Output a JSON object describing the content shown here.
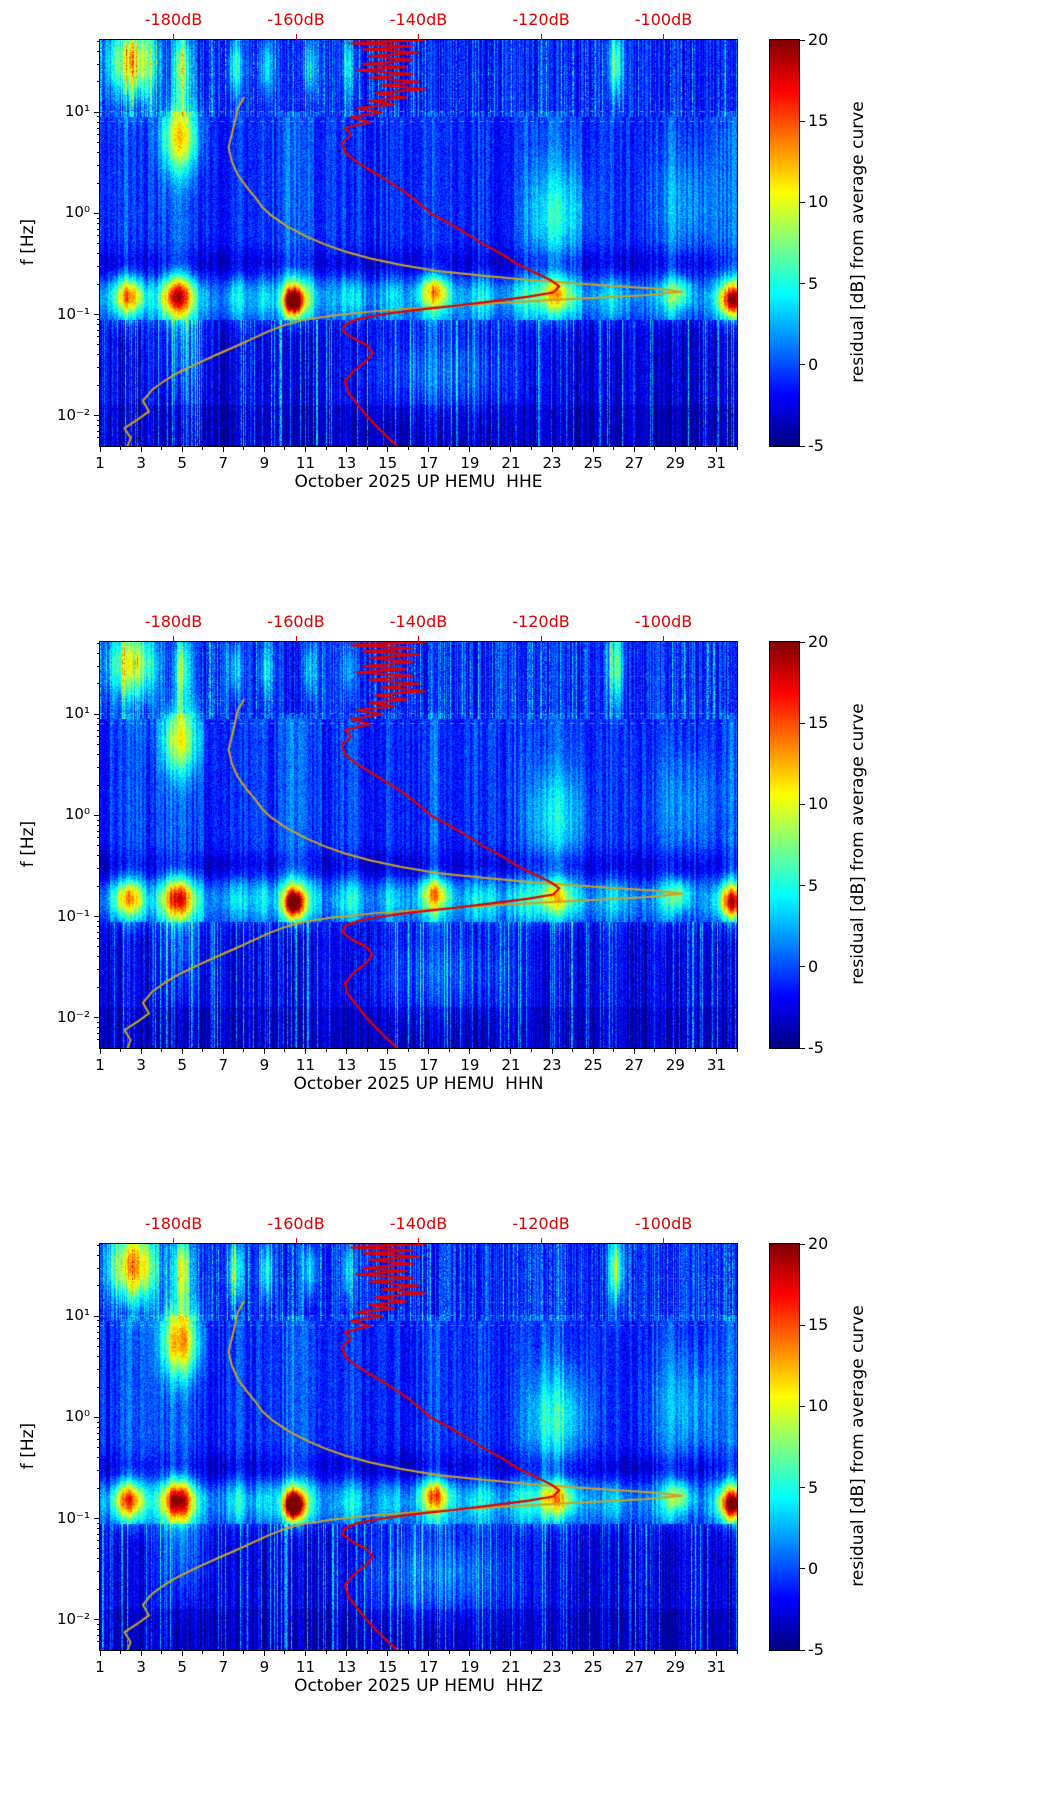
{
  "figure": {
    "background": "#ffffff"
  },
  "chart_data": {
    "type": "heatmap",
    "colormap": "jet",
    "f_label": "f [Hz]",
    "x_range": [
      1,
      32
    ],
    "f_range_hz": [
      0.005,
      52
    ],
    "value_range_db": [
      -5,
      20
    ],
    "x_ticks": [
      1,
      3,
      5,
      7,
      9,
      11,
      13,
      15,
      17,
      19,
      21,
      23,
      25,
      27,
      29,
      31
    ],
    "y_ticks": [
      {
        "f": 0.01,
        "label": "10⁻²"
      },
      {
        "f": 0.1,
        "label": "10⁻¹"
      },
      {
        "f": 1,
        "label": "10⁰"
      },
      {
        "f": 10,
        "label": "10¹"
      }
    ],
    "top_axis": {
      "db_range": [
        -192,
        -88
      ],
      "ticks": [
        -180,
        -160,
        -140,
        -120,
        -100
      ],
      "labels": [
        "-180dB",
        "-160dB",
        "-140dB",
        "-120dB",
        "-100dB"
      ],
      "color": "#e00000"
    },
    "colorbar": {
      "label": "residual [dB] from average curve",
      "min": -5,
      "max": 20,
      "ticks": [
        20,
        15,
        10,
        5,
        0,
        -5
      ]
    },
    "panels": [
      {
        "channel": "HHE",
        "xlabel": "October 2025 UP HEMU  HHE",
        "seed": 11,
        "blob_scale": 1.0
      },
      {
        "channel": "HHN",
        "xlabel": "October 2025 UP HEMU  HHN",
        "seed": 22,
        "blob_scale": 0.9
      },
      {
        "channel": "HHZ",
        "xlabel": "October 2025 UP HEMU  HHZ",
        "seed": 33,
        "blob_scale": 1.18
      }
    ],
    "curves": {
      "colors": {
        "olive_curve": "#c9a227",
        "red_curve": "#e00000"
      },
      "red_curve": [
        [
          55,
          -175
        ],
        [
          52,
          -139
        ],
        [
          48,
          -151
        ],
        [
          45,
          -141
        ],
        [
          42,
          -149
        ],
        [
          39,
          -140
        ],
        [
          36,
          -148
        ],
        [
          33,
          -141
        ],
        [
          30,
          -149
        ],
        [
          28,
          -142
        ],
        [
          26,
          -150
        ],
        [
          24,
          -141
        ],
        [
          22,
          -148
        ],
        [
          20,
          -140
        ],
        [
          18.5,
          -146
        ],
        [
          17,
          -139
        ],
        [
          15.5,
          -147
        ],
        [
          14,
          -142
        ],
        [
          13,
          -148
        ],
        [
          12,
          -144
        ],
        [
          11,
          -150
        ],
        [
          10,
          -146
        ],
        [
          9,
          -151
        ],
        [
          8,
          -148
        ],
        [
          7,
          -152
        ],
        [
          6,
          -151
        ],
        [
          5,
          -152.5
        ],
        [
          4,
          -152
        ],
        [
          3.2,
          -150
        ],
        [
          2.6,
          -147.5
        ],
        [
          2.1,
          -145
        ],
        [
          1.6,
          -142
        ],
        [
          1.2,
          -139.5
        ],
        [
          1.0,
          -138
        ],
        [
          0.8,
          -135
        ],
        [
          0.65,
          -132.5
        ],
        [
          0.5,
          -129.5
        ],
        [
          0.4,
          -126.5
        ],
        [
          0.32,
          -124
        ],
        [
          0.26,
          -121
        ],
        [
          0.22,
          -118.5
        ],
        [
          0.19,
          -117
        ],
        [
          0.165,
          -118
        ],
        [
          0.15,
          -122
        ],
        [
          0.135,
          -128
        ],
        [
          0.12,
          -135
        ],
        [
          0.11,
          -141
        ],
        [
          0.1,
          -146
        ],
        [
          0.09,
          -150
        ],
        [
          0.08,
          -152
        ],
        [
          0.07,
          -152.5
        ],
        [
          0.06,
          -151
        ],
        [
          0.05,
          -148.5
        ],
        [
          0.042,
          -147.5
        ],
        [
          0.035,
          -148.5
        ],
        [
          0.028,
          -150.5
        ],
        [
          0.022,
          -152
        ],
        [
          0.017,
          -151.5
        ],
        [
          0.013,
          -150
        ],
        [
          0.01,
          -148.5
        ],
        [
          0.008,
          -147
        ],
        [
          0.0065,
          -145.5
        ],
        [
          0.005,
          -143.5
        ]
      ],
      "olive_curve": [
        [
          14,
          -168.5
        ],
        [
          11,
          -169.5
        ],
        [
          8,
          -170
        ],
        [
          6,
          -170.5
        ],
        [
          4.5,
          -171
        ],
        [
          3.3,
          -170.5
        ],
        [
          2.4,
          -169.5
        ],
        [
          1.8,
          -168
        ],
        [
          1.4,
          -166.5
        ],
        [
          1.15,
          -165.5
        ],
        [
          0.95,
          -164
        ],
        [
          0.75,
          -161.5
        ],
        [
          0.6,
          -158.5
        ],
        [
          0.5,
          -155.5
        ],
        [
          0.42,
          -152
        ],
        [
          0.36,
          -148
        ],
        [
          0.31,
          -143
        ],
        [
          0.27,
          -137
        ],
        [
          0.24,
          -129
        ],
        [
          0.215,
          -120
        ],
        [
          0.195,
          -110
        ],
        [
          0.18,
          -101
        ],
        [
          0.168,
          -97
        ],
        [
          0.155,
          -103
        ],
        [
          0.142,
          -115
        ],
        [
          0.13,
          -127
        ],
        [
          0.118,
          -138
        ],
        [
          0.108,
          -147
        ],
        [
          0.098,
          -154
        ],
        [
          0.088,
          -159
        ],
        [
          0.078,
          -162
        ],
        [
          0.068,
          -164.5
        ],
        [
          0.058,
          -167
        ],
        [
          0.048,
          -170
        ],
        [
          0.04,
          -173
        ],
        [
          0.033,
          -176
        ],
        [
          0.027,
          -179
        ],
        [
          0.022,
          -181.5
        ],
        [
          0.018,
          -183.5
        ],
        [
          0.014,
          -185
        ],
        [
          0.011,
          -184
        ],
        [
          0.009,
          -186
        ],
        [
          0.0075,
          -188
        ],
        [
          0.006,
          -187
        ],
        [
          0.005,
          -187.5
        ]
      ]
    },
    "heatmap_features": {
      "storm_columns": [
        {
          "d": 2.4,
          "w": 0.5,
          "a": 0.9
        },
        {
          "d": 4.8,
          "w": 0.6,
          "a": 1.1
        },
        {
          "d": 7.7,
          "w": 0.35,
          "a": 0.5
        },
        {
          "d": 9.0,
          "w": 0.3,
          "a": 0.4
        },
        {
          "d": 10.4,
          "w": 0.45,
          "a": 1.3
        },
        {
          "d": 11.3,
          "w": 0.3,
          "a": 0.4
        },
        {
          "d": 13.2,
          "w": 0.4,
          "a": 0.5
        },
        {
          "d": 15.2,
          "w": 0.35,
          "a": 0.4
        },
        {
          "d": 17.3,
          "w": 0.5,
          "a": 0.9
        },
        {
          "d": 19.6,
          "w": 0.5,
          "a": 0.5
        },
        {
          "d": 21.6,
          "w": 0.5,
          "a": 0.5
        },
        {
          "d": 23.2,
          "w": 0.8,
          "a": 0.7
        },
        {
          "d": 26.0,
          "w": 0.35,
          "a": 0.45
        },
        {
          "d": 28.6,
          "w": 0.45,
          "a": 0.5
        },
        {
          "d": 31.7,
          "w": 0.5,
          "a": 1.0
        }
      ],
      "blobs": [
        {
          "d": 4.9,
          "sd": 0.6,
          "lf": 0.75,
          "slf": 0.24,
          "a": 11
        },
        {
          "d": 4.8,
          "sd": 0.5,
          "lf": -0.82,
          "slf": 0.12,
          "a": 9
        },
        {
          "d": 10.45,
          "sd": 0.33,
          "lf": -0.87,
          "slf": 0.09,
          "a": 17
        },
        {
          "d": 17.3,
          "sd": 0.5,
          "lf": -0.76,
          "slf": 0.1,
          "a": 7
        },
        {
          "d": 23.2,
          "sd": 1.0,
          "lf": 0.0,
          "slf": 0.33,
          "a": 5
        },
        {
          "d": 23.2,
          "sd": 0.5,
          "lf": -0.8,
          "slf": 0.11,
          "a": 6
        },
        {
          "d": 31.8,
          "sd": 0.4,
          "lf": -0.86,
          "slf": 0.1,
          "a": 12
        },
        {
          "d": 2.4,
          "sd": 0.5,
          "lf": -0.82,
          "slf": 0.11,
          "a": 7
        },
        {
          "d": 29.2,
          "sd": 0.4,
          "lf": -0.78,
          "slf": 0.1,
          "a": 5
        },
        {
          "d": 2.6,
          "sd": 0.8,
          "lf": 1.5,
          "slf": 0.25,
          "a": 12
        },
        {
          "d": 5.0,
          "sd": 0.3,
          "lf": 1.45,
          "slf": 0.25,
          "a": 9
        },
        {
          "d": 7.6,
          "sd": 0.25,
          "lf": 1.45,
          "slf": 0.2,
          "a": 6
        },
        {
          "d": 9.1,
          "sd": 0.25,
          "lf": 1.45,
          "slf": 0.2,
          "a": 5
        },
        {
          "d": 11.2,
          "sd": 0.25,
          "lf": 1.45,
          "slf": 0.2,
          "a": 5
        },
        {
          "d": 13.1,
          "sd": 0.25,
          "lf": 1.45,
          "slf": 0.2,
          "a": 4
        },
        {
          "d": 26.1,
          "sd": 0.25,
          "lf": 1.48,
          "slf": 0.25,
          "a": 8
        },
        {
          "d": 17.5,
          "sd": 2.5,
          "lf": -1.55,
          "slf": 0.3,
          "a": 3.5
        },
        {
          "d": 5.0,
          "sd": 0.8,
          "lf": -1.3,
          "slf": 0.35,
          "a": 3
        },
        {
          "d": 29.5,
          "sd": 1.2,
          "lf": 0.1,
          "slf": 0.4,
          "a": 3
        }
      ]
    }
  }
}
